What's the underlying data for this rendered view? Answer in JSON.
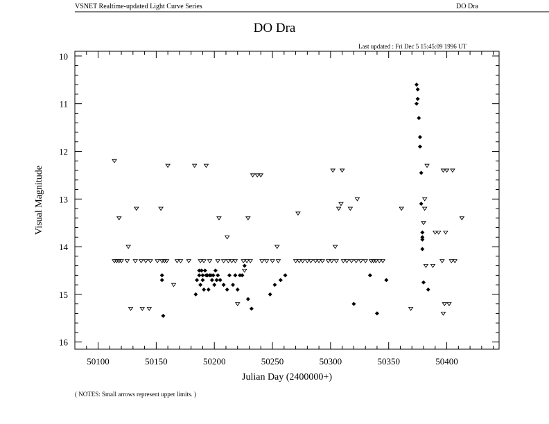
{
  "header": {
    "left": "VSNET Realtime-updated Light Curve Series",
    "right": "DO Dra",
    "last_updated": "Last updated :  Fri Dec 5 15:45:09 1996 UT",
    "notes": "( NOTES: Small arrows represent upper limits. )"
  },
  "chart_data": {
    "type": "scatter",
    "title": "DO Dra",
    "xlabel": "Julian Day (2400000+)",
    "ylabel": "Visual Magnitude",
    "xlim": [
      50080,
      50445
    ],
    "ylim": [
      16.15,
      9.9
    ],
    "y_inverted": true,
    "x_ticks": [
      50100,
      50150,
      50200,
      50250,
      50300,
      50350,
      50400
    ],
    "y_ticks": [
      10,
      11,
      12,
      13,
      14,
      15,
      16
    ],
    "grid": false,
    "series": [
      {
        "marker": "diamond",
        "points": [
          [
            50155,
            14.6
          ],
          [
            50155,
            14.7
          ],
          [
            50156,
            15.45
          ],
          [
            50184,
            15.0
          ],
          [
            50185,
            14.7
          ],
          [
            50187,
            14.5
          ],
          [
            50187,
            14.6
          ],
          [
            50188,
            14.8
          ],
          [
            50189,
            14.5
          ],
          [
            50190,
            14.6
          ],
          [
            50190,
            14.7
          ],
          [
            50191,
            14.9
          ],
          [
            50192,
            14.5
          ],
          [
            50193,
            14.6
          ],
          [
            50194,
            14.6
          ],
          [
            50195,
            14.9
          ],
          [
            50196,
            14.6
          ],
          [
            50197,
            14.6
          ],
          [
            50198,
            14.7
          ],
          [
            50199,
            14.6
          ],
          [
            50200,
            14.8
          ],
          [
            50201,
            14.5
          ],
          [
            50202,
            14.7
          ],
          [
            50203,
            14.6
          ],
          [
            50205,
            14.7
          ],
          [
            50208,
            14.8
          ],
          [
            50211,
            14.9
          ],
          [
            50213,
            14.6
          ],
          [
            50216,
            14.8
          ],
          [
            50218,
            14.6
          ],
          [
            50220,
            14.9
          ],
          [
            50222,
            14.6
          ],
          [
            50224,
            14.6
          ],
          [
            50226,
            14.4
          ],
          [
            50229,
            15.1
          ],
          [
            50232,
            15.3
          ],
          [
            50248,
            15.0
          ],
          [
            50252,
            14.8
          ],
          [
            50257,
            14.7
          ],
          [
            50261,
            14.6
          ],
          [
            50320,
            15.2
          ],
          [
            50334,
            14.6
          ],
          [
            50340,
            15.4
          ],
          [
            50348,
            14.7
          ],
          [
            50374,
            10.6
          ],
          [
            50375,
            10.7
          ],
          [
            50374,
            11.0
          ],
          [
            50375,
            10.9
          ],
          [
            50376,
            11.3
          ],
          [
            50377,
            11.7
          ],
          [
            50377,
            11.9
          ],
          [
            50378,
            12.45
          ],
          [
            50378,
            13.1
          ],
          [
            50379,
            13.7
          ],
          [
            50379,
            13.8
          ],
          [
            50379,
            13.85
          ],
          [
            50379,
            14.05
          ],
          [
            50380,
            14.75
          ],
          [
            50384,
            14.9
          ]
        ]
      },
      {
        "name": "upper limits",
        "marker": "triangle-down",
        "points": [
          [
            50114,
            12.2
          ],
          [
            50114,
            14.3
          ],
          [
            50116,
            14.3
          ],
          [
            50118,
            13.4
          ],
          [
            50118,
            14.3
          ],
          [
            50120,
            14.3
          ],
          [
            50125,
            14.3
          ],
          [
            50126,
            14.0
          ],
          [
            50128,
            15.3
          ],
          [
            50132,
            14.3
          ],
          [
            50133,
            13.2
          ],
          [
            50137,
            14.3
          ],
          [
            50138,
            15.3
          ],
          [
            50141,
            14.3
          ],
          [
            50144,
            15.3
          ],
          [
            50145,
            14.3
          ],
          [
            50151,
            14.3
          ],
          [
            50154,
            13.2
          ],
          [
            50155,
            14.3
          ],
          [
            50157,
            14.3
          ],
          [
            50159,
            14.3
          ],
          [
            50160,
            12.3
          ],
          [
            50165,
            14.8
          ],
          [
            50168,
            14.3
          ],
          [
            50171,
            14.3
          ],
          [
            50178,
            14.3
          ],
          [
            50183,
            12.3
          ],
          [
            50188,
            14.3
          ],
          [
            50191,
            14.3
          ],
          [
            50193,
            12.3
          ],
          [
            50196,
            14.3
          ],
          [
            50203,
            14.3
          ],
          [
            50204,
            13.4
          ],
          [
            50208,
            14.3
          ],
          [
            50211,
            13.8
          ],
          [
            50212,
            14.3
          ],
          [
            50215,
            14.3
          ],
          [
            50218,
            14.3
          ],
          [
            50220,
            15.2
          ],
          [
            50225,
            14.3
          ],
          [
            50226,
            14.5
          ],
          [
            50228,
            14.3
          ],
          [
            50229,
            13.4
          ],
          [
            50231,
            14.3
          ],
          [
            50233,
            12.5
          ],
          [
            50237,
            12.5
          ],
          [
            50240,
            12.5
          ],
          [
            50241,
            14.3
          ],
          [
            50245,
            14.3
          ],
          [
            50250,
            14.3
          ],
          [
            50254,
            14.0
          ],
          [
            50255,
            14.3
          ],
          [
            50270,
            14.3
          ],
          [
            50272,
            13.3
          ],
          [
            50273,
            14.3
          ],
          [
            50276,
            14.3
          ],
          [
            50280,
            14.3
          ],
          [
            50283,
            14.3
          ],
          [
            50287,
            14.3
          ],
          [
            50290,
            14.3
          ],
          [
            50293,
            14.3
          ],
          [
            50298,
            14.3
          ],
          [
            50301,
            14.3
          ],
          [
            50302,
            12.4
          ],
          [
            50304,
            14.0
          ],
          [
            50305,
            14.3
          ],
          [
            50307,
            13.2
          ],
          [
            50309,
            13.1
          ],
          [
            50310,
            12.4
          ],
          [
            50311,
            14.3
          ],
          [
            50314,
            14.3
          ],
          [
            50317,
            13.2
          ],
          [
            50318,
            14.3
          ],
          [
            50322,
            14.3
          ],
          [
            50323,
            13.0
          ],
          [
            50326,
            14.3
          ],
          [
            50330,
            14.3
          ],
          [
            50335,
            14.3
          ],
          [
            50337,
            14.3
          ],
          [
            50339,
            14.3
          ],
          [
            50342,
            14.3
          ],
          [
            50345,
            14.3
          ],
          [
            50361,
            13.2
          ],
          [
            50369,
            15.3
          ],
          [
            50380,
            13.5
          ],
          [
            50381,
            13.2
          ],
          [
            50381,
            13.0
          ],
          [
            50382,
            14.4
          ],
          [
            50383,
            12.3
          ],
          [
            50388,
            14.4
          ],
          [
            50390,
            13.7
          ],
          [
            50393,
            13.7
          ],
          [
            50396,
            14.3
          ],
          [
            50397,
            12.4
          ],
          [
            50397,
            15.4
          ],
          [
            50398,
            15.2
          ],
          [
            50399,
            13.7
          ],
          [
            50400,
            12.4
          ],
          [
            50402,
            15.2
          ],
          [
            50404,
            14.3
          ],
          [
            50405,
            12.4
          ],
          [
            50407,
            14.3
          ],
          [
            50413,
            13.4
          ]
        ]
      }
    ]
  }
}
